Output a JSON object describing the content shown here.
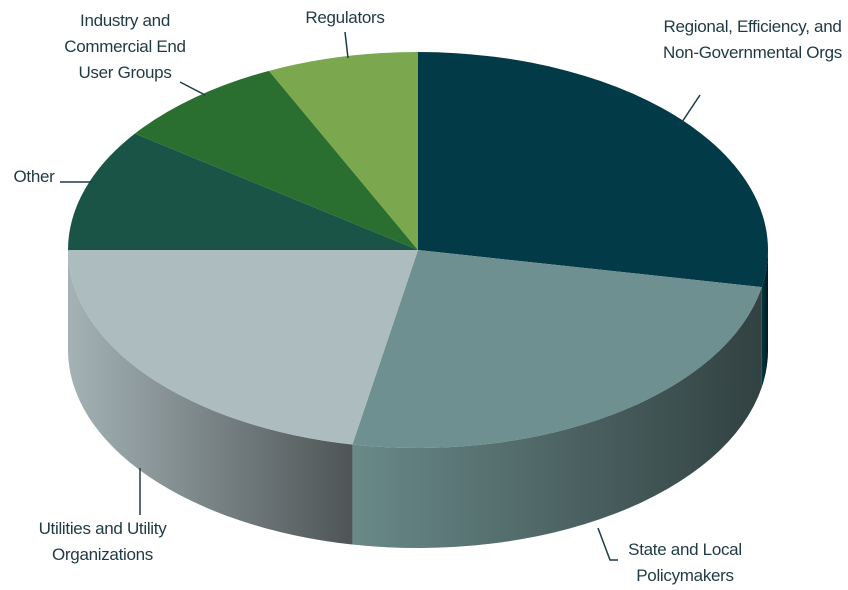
{
  "chart_data": {
    "type": "pie3d",
    "categories": [
      "Regional, Efficiency, and Non-Governmental Orgs",
      "State and Local Policymakers",
      "Utilities and Utility Organizations",
      "Other",
      "Industry and Commercial End User Groups",
      "Regulators"
    ],
    "values": [
      28,
      25,
      22,
      10,
      8,
      7
    ],
    "colors": [
      "#023a47",
      "#6f9090",
      "#adbcbf",
      "#1a5446",
      "#2a6e30",
      "#7ba84f"
    ]
  }
}
